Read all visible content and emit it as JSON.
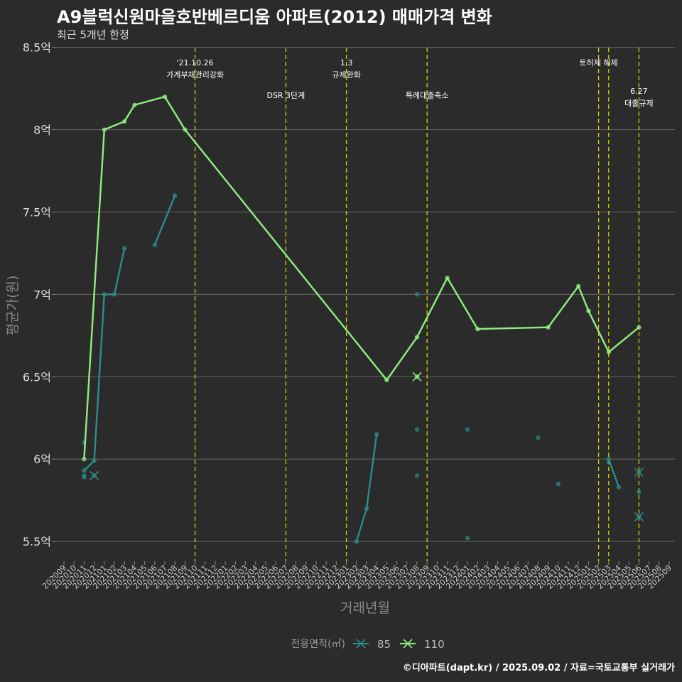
{
  "chart_data": {
    "type": "line",
    "title": "A9블럭신원마을호반베르디움 아파트(2012) 매매가격 변화",
    "subtitle": "최근 5개년 한정",
    "xlabel": "거래년월",
    "ylabel": "평균가(원)",
    "caption": "©디아파트(dapt.kr) / 2025.09.02 / 자료=국토교통부 실거래가",
    "x_categories": [
      "202009",
      "202010",
      "202011",
      "202012",
      "202101",
      "202102",
      "202103",
      "202104",
      "202105",
      "202106",
      "202107",
      "202108",
      "202109",
      "202110",
      "202111",
      "202112",
      "202201",
      "202202",
      "202203",
      "202204",
      "202205",
      "202206",
      "202207",
      "202208",
      "202209",
      "202210",
      "202211",
      "202212",
      "202301",
      "202302",
      "202303",
      "202304",
      "202305",
      "202306",
      "202307",
      "202308",
      "202309",
      "202310",
      "202311",
      "202312",
      "202401",
      "202402",
      "202403",
      "202404",
      "202405",
      "202406",
      "202407",
      "202408",
      "202409",
      "202410",
      "202411",
      "202412",
      "202501",
      "202502",
      "202503",
      "202504",
      "202505",
      "202506",
      "202507",
      "202508",
      "202509"
    ],
    "y_ticks": [
      5.5,
      6,
      6.5,
      7,
      7.5,
      8,
      8.5
    ],
    "y_tick_labels": [
      "5.5억",
      "6억",
      "6.5억",
      "7억",
      "7.5억",
      "8억",
      "8.5억"
    ],
    "ylim": [
      5.38,
      8.55
    ],
    "legend": {
      "title": "전용면적(㎡)",
      "position": "bottom"
    },
    "series": [
      {
        "name": "85",
        "color": "#2a8e8a",
        "segments": [
          [
            [
              "202011",
              5.93
            ],
            [
              "202012",
              5.99
            ],
            [
              "202101",
              7.0
            ],
            [
              "202102",
              7.0
            ],
            [
              "202103",
              7.28
            ]
          ],
          [
            [
              "202106",
              7.3
            ],
            [
              "202108",
              7.6
            ]
          ],
          [
            [
              "202302",
              5.5
            ],
            [
              "202303",
              5.7
            ],
            [
              "202304",
              6.15
            ]
          ],
          [
            [
              "202503",
              6.0
            ],
            [
              "202504",
              5.83
            ]
          ]
        ],
        "points": [
          [
            "202011",
            6.1
          ],
          [
            "202011",
            5.9
          ],
          [
            "202011",
            5.89
          ],
          [
            "202308",
            7.0
          ],
          [
            "202308",
            6.18
          ],
          [
            "202308",
            5.9
          ],
          [
            "202401",
            6.18
          ],
          [
            "202401",
            5.52
          ],
          [
            "202408",
            6.13
          ],
          [
            "202410",
            5.85
          ],
          [
            "202503",
            5.98
          ],
          [
            "202506",
            5.8
          ]
        ],
        "cross_points": [
          [
            "202012",
            5.9
          ],
          [
            "202506",
            5.92
          ],
          [
            "202506",
            5.65
          ]
        ]
      },
      {
        "name": "110",
        "color": "#90ee80",
        "segments": [
          [
            [
              "202011",
              6.0
            ],
            [
              "202101",
              8.0
            ],
            [
              "202103",
              8.05
            ],
            [
              "202104",
              8.15
            ],
            [
              "202107",
              8.2
            ],
            [
              "202109",
              8.0
            ],
            [
              "202305",
              6.48
            ],
            [
              "202308",
              6.74
            ],
            [
              "202311",
              7.1
            ],
            [
              "202402",
              6.79
            ],
            [
              "202409",
              6.8
            ],
            [
              "202412",
              7.05
            ],
            [
              "202501",
              6.9
            ],
            [
              "202503",
              6.65
            ],
            [
              "202506",
              6.8
            ]
          ]
        ],
        "points": [],
        "cross_points": [
          [
            "202308",
            6.5
          ]
        ]
      }
    ],
    "annotations": [
      {
        "x": "202110",
        "label": [
          "'21.10.26",
          "가계부채관리강화"
        ],
        "level": 0
      },
      {
        "x": "202207",
        "label": [
          "DSR 3단계"
        ],
        "level": 1
      },
      {
        "x": "202301",
        "label": [
          "1.3",
          "규제완화"
        ],
        "level": 0
      },
      {
        "x": "202309",
        "label": [
          "특례대출축소"
        ],
        "level": 1
      },
      {
        "x": "202502",
        "label": [
          "토허제 해제"
        ],
        "level": 0
      },
      {
        "x": "202503",
        "label": [],
        "level": 0
      },
      {
        "x": "202506",
        "label": [
          "6.27",
          "대출규제"
        ],
        "level": 2
      }
    ]
  }
}
